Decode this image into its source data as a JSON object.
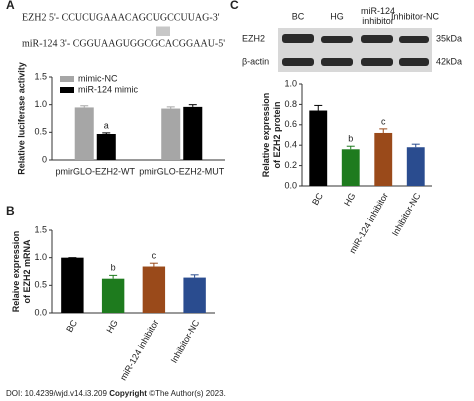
{
  "panel_labels": [
    "A",
    "B",
    "C"
  ],
  "sequence": {
    "line1": "EZH2 5'- CCUCUGAAACAGCUGCCUUAG-3'",
    "pairing": "|||||||",
    "line2": "miR-124 3'- CGGUAAGUGGCGCACGGAAU-5'"
  },
  "blot": {
    "lanes": [
      "BC",
      "HG",
      "miR-124 inhibitor",
      "Inhibitor-NC"
    ],
    "rows": [
      {
        "name": "EZH2",
        "size": "35kDa"
      },
      {
        "name": "β-actin",
        "size": "42kDa"
      }
    ]
  },
  "footer": {
    "doi": "DOI: 10.4239/wjd.v14.i3.209",
    "copyright": "Copyright",
    "rest": "©The Author(s) 2023."
  },
  "chart_data": [
    {
      "type": "bar",
      "ylabel": [
        "Relative luciferase activity"
      ],
      "categories": [
        "pmirGLO-EZH2-WT",
        "pmirGLO-EZH2-MUT"
      ],
      "series": [
        {
          "name": "mimic-NC",
          "color": "#a6a6a6",
          "values": [
            0.95,
            0.93
          ],
          "errors": [
            0.03,
            0.03
          ],
          "annotations": [
            null,
            null
          ]
        },
        {
          "name": "miR-124 mimic",
          "color": "#000000",
          "values": [
            0.47,
            0.96
          ],
          "errors": [
            0.02,
            0.04
          ],
          "annotations": [
            "a",
            null
          ]
        }
      ],
      "ylim": [
        0,
        1.5
      ],
      "yticks": [
        0,
        0.5,
        {
          "value": 1,
          "label": "1.0"
        },
        1.5
      ],
      "legend": "upper left"
    },
    {
      "type": "bar",
      "ylabel": [
        "Relaive expression",
        "of EZH2 mRNA"
      ],
      "categories": [
        "BC",
        "HG",
        "miR-124 inhibitor",
        "Inhibitor-NC"
      ],
      "values": [
        1.0,
        0.62,
        0.84,
        0.64
      ],
      "errors": [
        0,
        0.06,
        0.06,
        0.05
      ],
      "annotations": [
        null,
        "b",
        "c",
        null
      ],
      "colors": [
        "#000000",
        "#1e7b1e",
        "#9a4a1a",
        "#2a4c8f"
      ],
      "ylim": [
        0,
        1.5
      ],
      "yticks": [
        {
          "value": 0,
          "label": "0.0"
        },
        0.5,
        {
          "value": 1,
          "label": "1.0"
        },
        1.5
      ]
    },
    {
      "type": "bar",
      "ylabel": [
        "Relative expression",
        "of EZH2 protein"
      ],
      "categories": [
        "BC",
        "HG",
        "miR-124 inhibitor",
        "Inhibitor-NC"
      ],
      "values": [
        0.74,
        0.36,
        0.52,
        0.38
      ],
      "errors": [
        0.05,
        0.03,
        0.04,
        0.03
      ],
      "annotations": [
        null,
        "b",
        "c",
        null
      ],
      "colors": [
        "#000000",
        "#1e7b1e",
        "#9a4a1a",
        "#2a4c8f"
      ],
      "ylim": [
        0,
        1.0
      ],
      "yticks": [
        {
          "value": 0,
          "label": "0.0"
        },
        0.2,
        0.4,
        0.6,
        0.8,
        {
          "value": 1,
          "label": "1.0"
        }
      ]
    }
  ]
}
